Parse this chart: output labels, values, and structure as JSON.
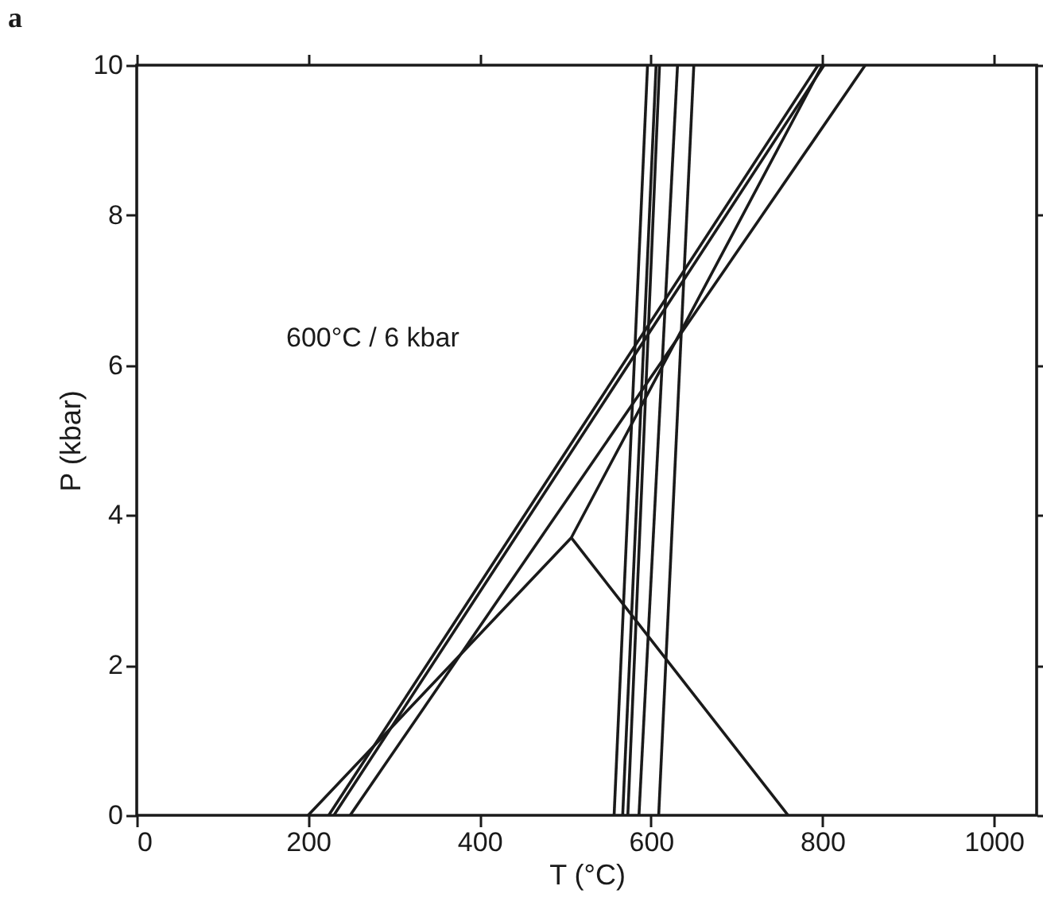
{
  "chart_data": {
    "type": "line",
    "title": "a",
    "xlabel": "T (°C)",
    "ylabel": "P (kbar)",
    "xlim": [
      0,
      1050
    ],
    "ylim": [
      0,
      10
    ],
    "xticks": [
      0,
      200,
      400,
      600,
      800,
      {
        "value": 1000,
        "label": "1000"
      }
    ],
    "yticks": [
      0,
      2,
      4,
      6,
      8,
      10
    ],
    "grid": false,
    "legend": false,
    "marker": "none",
    "line_style": "solid",
    "annotations": [
      "600°C / 6 kbar"
    ],
    "series": [
      {
        "color": "#1a1a1a",
        "x": [
          200,
          507,
          800
        ],
        "values": [
          0,
          3.7,
          10
        ]
      },
      {
        "color": "#1a1a1a",
        "x": [
          507,
          760
        ],
        "values": [
          3.7,
          0
        ]
      },
      {
        "color": "#1a1a1a",
        "x": [
          224,
          795
        ],
        "values": [
          0,
          10
        ]
      },
      {
        "color": "#1a1a1a",
        "x": [
          230,
          802
        ],
        "values": [
          0,
          10
        ]
      },
      {
        "color": "#1a1a1a",
        "x": [
          249,
          850
        ],
        "values": [
          0,
          10
        ]
      },
      {
        "color": "#1a1a1a",
        "x": [
          557,
          596
        ],
        "values": [
          0,
          10
        ]
      },
      {
        "color": "#1a1a1a",
        "x": [
          567,
          606
        ],
        "values": [
          0,
          10
        ]
      },
      {
        "color": "#1a1a1a",
        "x": [
          573,
          610
        ],
        "values": [
          0,
          10
        ]
      },
      {
        "color": "#1a1a1a",
        "x": [
          586,
          631
        ],
        "values": [
          0,
          10
        ]
      },
      {
        "color": "#1a1a1a",
        "x": [
          609,
          650
        ],
        "values": [
          0,
          10
        ]
      }
    ]
  }
}
